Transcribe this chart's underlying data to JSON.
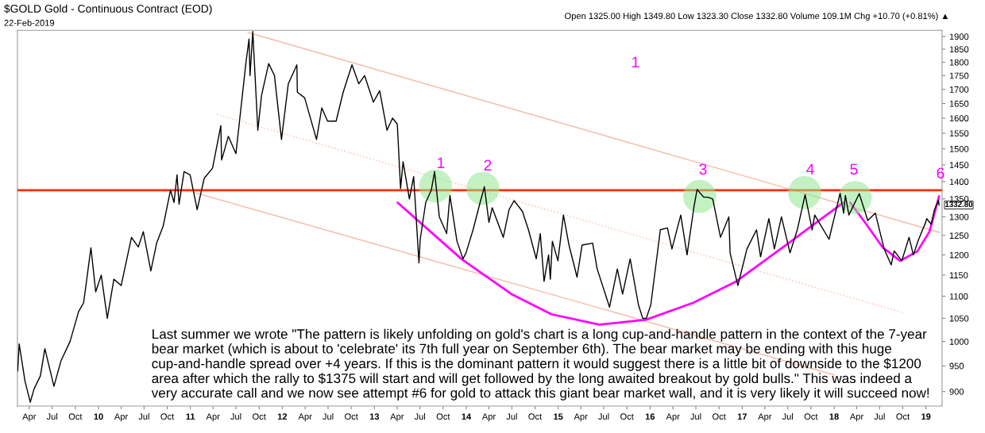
{
  "chart_data": {
    "type": "line",
    "title": "$GOLD Gold - Continuous Contract (EOD)",
    "subtitle": "22-Feb-2019",
    "log": "y",
    "xlim": [
      "2009-02-13",
      "2019-03-06"
    ],
    "ylim": [
      873,
      1925
    ],
    "yticks": [
      900,
      950,
      1000,
      1050,
      1100,
      1150,
      1200,
      1250,
      1300,
      1350,
      1400,
      1450,
      1500,
      1550,
      1600,
      1650,
      1700,
      1750,
      1800,
      1850,
      1900
    ],
    "xticks": [
      {
        "value": "2009-04-01",
        "label": "Apr"
      },
      {
        "value": "2009-07-01",
        "label": "Jul"
      },
      {
        "value": "2009-10-01",
        "label": "Oct"
      },
      {
        "value": "2010-01-01",
        "label": "10"
      },
      {
        "value": "2010-04-01",
        "label": "Apr"
      },
      {
        "value": "2010-07-01",
        "label": "Jul"
      },
      {
        "value": "2010-10-01",
        "label": "Oct"
      },
      {
        "value": "2011-01-01",
        "label": "11"
      },
      {
        "value": "2011-04-01",
        "label": "Apr"
      },
      {
        "value": "2011-07-01",
        "label": "Jul"
      },
      {
        "value": "2011-10-01",
        "label": "Oct"
      },
      {
        "value": "2012-01-01",
        "label": "12"
      },
      {
        "value": "2012-04-01",
        "label": "Apr"
      },
      {
        "value": "2012-07-01",
        "label": "Jul"
      },
      {
        "value": "2012-10-01",
        "label": "Oct"
      },
      {
        "value": "2013-01-01",
        "label": "13"
      },
      {
        "value": "2013-04-01",
        "label": "Apr"
      },
      {
        "value": "2013-07-01",
        "label": "Jul"
      },
      {
        "value": "2013-10-01",
        "label": "Oct"
      },
      {
        "value": "2014-01-01",
        "label": "14"
      },
      {
        "value": "2014-04-01",
        "label": "Apr"
      },
      {
        "value": "2014-07-01",
        "label": "Jul"
      },
      {
        "value": "2014-10-01",
        "label": "Oct"
      },
      {
        "value": "2015-01-01",
        "label": "15"
      },
      {
        "value": "2015-04-01",
        "label": "Apr"
      },
      {
        "value": "2015-07-01",
        "label": "Jul"
      },
      {
        "value": "2015-10-01",
        "label": "Oct"
      },
      {
        "value": "2016-01-01",
        "label": "16"
      },
      {
        "value": "2016-04-01",
        "label": "Apr"
      },
      {
        "value": "2016-07-01",
        "label": "Jul"
      },
      {
        "value": "2016-10-01",
        "label": "Oct"
      },
      {
        "value": "2017-01-01",
        "label": "17"
      },
      {
        "value": "2017-04-01",
        "label": "Apr"
      },
      {
        "value": "2017-07-01",
        "label": "Jul"
      },
      {
        "value": "2017-10-01",
        "label": "Oct"
      },
      {
        "value": "2018-01-01",
        "label": "18"
      },
      {
        "value": "2018-04-01",
        "label": "Apr"
      },
      {
        "value": "2018-07-01",
        "label": "Jul"
      },
      {
        "value": "2018-10-01",
        "label": "Oct"
      },
      {
        "value": "2019-01-01",
        "label": "19"
      }
    ],
    "ref_lines": [
      {
        "axis": "y",
        "value": 1375,
        "color": "#ff2a00"
      }
    ],
    "series": [
      {
        "color": "#000000",
        "x": [
          "2009-02-14",
          "2009-02-20",
          "2009-03-15",
          "2009-04-05",
          "2009-04-20",
          "2009-05-15",
          "2009-06-02",
          "2009-07-08",
          "2009-08-05",
          "2009-09-10",
          "2009-10-14",
          "2009-11-03",
          "2009-12-02",
          "2009-12-21",
          "2010-01-12",
          "2010-02-05",
          "2010-03-03",
          "2010-04-01",
          "2010-05-12",
          "2010-06-08",
          "2010-06-28",
          "2010-07-28",
          "2010-08-20",
          "2010-09-15",
          "2010-10-14",
          "2010-10-28",
          "2010-11-09",
          "2010-11-17",
          "2010-12-07",
          "2010-12-31",
          "2011-01-28",
          "2011-02-25",
          "2011-03-30",
          "2011-05-02",
          "2011-05-05",
          "2011-06-01",
          "2011-07-01",
          "2011-08-10",
          "2011-08-22",
          "2011-08-26",
          "2011-09-06",
          "2011-09-26",
          "2011-10-11",
          "2011-11-08",
          "2011-12-01",
          "2011-12-29",
          "2012-01-25",
          "2012-02-28",
          "2012-03-01",
          "2012-03-30",
          "2012-05-16",
          "2012-06-06",
          "2012-06-29",
          "2012-08-02",
          "2012-08-30",
          "2012-10-04",
          "2012-10-31",
          "2012-11-23",
          "2012-12-28",
          "2013-01-22",
          "2013-02-20",
          "2013-03-14",
          "2013-04-02",
          "2013-04-15",
          "2013-04-25",
          "2013-05-20",
          "2013-06-06",
          "2013-06-27",
          "2013-07-02",
          "2013-07-24",
          "2013-08-15",
          "2013-08-28",
          "2013-09-16",
          "2013-10-15",
          "2013-10-28",
          "2013-11-25",
          "2013-12-19",
          "2013-12-31",
          "2014-01-28",
          "2014-02-25",
          "2014-03-14",
          "2014-04-01",
          "2014-04-14",
          "2014-05-28",
          "2014-06-20",
          "2014-07-10",
          "2014-08-12",
          "2014-09-05",
          "2014-10-06",
          "2014-10-22",
          "2014-11-06",
          "2014-11-24",
          "2014-12-01",
          "2014-12-09",
          "2014-12-31",
          "2015-01-22",
          "2015-02-13",
          "2015-03-17",
          "2015-04-06",
          "2015-05-18",
          "2015-06-05",
          "2015-07-24",
          "2015-08-24",
          "2015-09-14",
          "2015-10-14",
          "2015-11-16",
          "2015-12-03",
          "2015-12-17",
          "2016-01-04",
          "2016-02-11",
          "2016-03-10",
          "2016-03-28",
          "2016-05-02",
          "2016-05-27",
          "2016-06-24",
          "2016-07-06",
          "2016-08-01",
          "2016-08-17",
          "2016-09-06",
          "2016-10-07",
          "2016-11-09",
          "2016-11-14",
          "2016-12-15",
          "2017-01-20",
          "2017-02-27",
          "2017-03-15",
          "2017-04-17",
          "2017-05-09",
          "2017-06-06",
          "2017-07-10",
          "2017-08-08",
          "2017-09-08",
          "2017-10-06",
          "2017-10-16",
          "2017-12-12",
          "2018-01-25",
          "2018-02-08",
          "2018-02-15",
          "2018-03-01",
          "2018-04-11",
          "2018-05-15",
          "2018-06-14",
          "2018-07-19",
          "2018-08-16",
          "2018-08-28",
          "2018-09-27",
          "2018-10-26",
          "2018-11-12",
          "2018-12-03",
          "2018-12-31",
          "2019-01-04",
          "2019-01-22",
          "2019-02-04",
          "2019-02-20",
          "2019-02-22"
        ],
        "values": [
          940,
          995,
          920,
          880,
          905,
          930,
          985,
          910,
          960,
          1000,
          1065,
          1085,
          1218,
          1110,
          1150,
          1050,
          1140,
          1125,
          1245,
          1220,
          1260,
          1160,
          1230,
          1275,
          1375,
          1340,
          1420,
          1335,
          1430,
          1420,
          1320,
          1410,
          1440,
          1575,
          1465,
          1540,
          1485,
          1800,
          1890,
          1750,
          1920,
          1560,
          1680,
          1795,
          1750,
          1530,
          1720,
          1790,
          1690,
          1670,
          1530,
          1635,
          1590,
          1590,
          1690,
          1790,
          1720,
          1750,
          1655,
          1695,
          1560,
          1600,
          1580,
          1380,
          1460,
          1350,
          1415,
          1180,
          1240,
          1340,
          1375,
          1430,
          1300,
          1255,
          1360,
          1235,
          1190,
          1205,
          1265,
          1340,
          1385,
          1285,
          1325,
          1245,
          1320,
          1345,
          1315,
          1265,
          1190,
          1255,
          1135,
          1200,
          1140,
          1235,
          1185,
          1305,
          1225,
          1145,
          1225,
          1230,
          1165,
          1075,
          1165,
          1105,
          1190,
          1080,
          1050,
          1050,
          1080,
          1265,
          1270,
          1215,
          1305,
          1200,
          1330,
          1377,
          1355,
          1355,
          1350,
          1245,
          1300,
          1205,
          1125,
          1215,
          1265,
          1195,
          1295,
          1215,
          1300,
          1205,
          1265,
          1362,
          1265,
          1305,
          1240,
          1366,
          1310,
          1360,
          1305,
          1365,
          1290,
          1310,
          1215,
          1175,
          1210,
          1185,
          1245,
          1200,
          1240,
          1285,
          1295,
          1280,
          1320,
          1346,
          1332.8
        ],
        "value_labels": [
          null,
          null,
          null,
          null,
          null,
          null,
          null,
          null,
          null,
          null,
          null,
          null,
          null,
          null,
          null,
          null,
          null,
          null,
          null,
          null,
          null,
          null,
          null,
          null,
          null,
          null,
          null,
          null,
          null,
          null,
          null,
          null,
          null,
          null,
          null,
          null,
          null,
          null,
          null,
          null,
          null,
          null,
          null,
          null,
          null,
          null,
          null,
          null,
          null,
          null,
          null,
          null,
          null,
          null,
          null,
          null,
          null,
          null,
          null,
          null,
          null,
          null,
          null,
          null,
          null,
          null,
          null,
          null,
          null,
          null,
          null,
          null,
          null,
          null,
          null,
          null,
          null,
          null,
          null,
          null,
          null,
          null,
          null,
          null,
          null,
          null,
          null,
          null,
          null,
          null,
          null,
          null,
          null,
          null,
          null,
          null,
          null,
          null,
          null,
          null,
          null,
          null,
          null,
          null,
          null,
          null,
          null,
          null,
          null,
          null,
          null,
          null,
          null,
          null,
          null,
          null,
          null,
          null,
          null,
          null,
          null,
          null,
          null,
          null,
          null,
          null,
          null,
          null,
          null,
          null,
          null,
          null,
          null,
          null,
          null,
          null,
          null,
          null,
          null,
          null,
          null,
          null,
          null,
          null,
          null,
          null,
          null,
          null,
          null,
          null,
          null,
          null,
          null,
          null,
          "1332.80"
        ]
      },
      {
        "type": "line",
        "color": "#f7b9a6",
        "x": [
          "2011-08-18",
          "2019-02-24"
        ],
        "values": [
          1916,
          1258
        ]
      },
      {
        "type": "line",
        "color": "#f7b9a6",
        "line_style": "dotted",
        "x": [
          "2011-04-16",
          "2018-10-05"
        ],
        "values": [
          1613,
          1062
        ]
      },
      {
        "type": "line",
        "color": "#f7b9a6",
        "x": [
          "2011-01-18",
          "2018-01-01"
        ],
        "values": [
          1368,
          932
        ]
      },
      {
        "type": "line",
        "color": "#ff00ff",
        "x": [
          "2013-04-04",
          "2013-12-14",
          "2014-07-02",
          "2014-12-05",
          "2015-06-13",
          "2015-12-16",
          "2016-06-21",
          "2016-12-09",
          "2017-07-02",
          "2018-02-06"
        ],
        "values": [
          1339,
          1189,
          1104,
          1059,
          1036,
          1047,
          1085,
          1135,
          1229,
          1339
        ]
      },
      {
        "type": "line",
        "color": "#ff00ff",
        "x": [
          "2018-03-07",
          "2018-05-08",
          "2018-07-13",
          "2018-09-20",
          "2018-11-28",
          "2019-01-15",
          "2019-02-22"
        ],
        "values": [
          1339,
          1281,
          1219,
          1185,
          1209,
          1260,
          1357
        ]
      },
      {
        "type": "scatter",
        "color": "#90e890",
        "marker": "circle",
        "x": [
          "2013-09-01",
          "2014-03-08",
          "2016-07-16",
          "2017-09-06",
          "2018-03-26"
        ],
        "values": [
          1387,
          1380,
          1357,
          1368,
          1354
        ]
      }
    ],
    "annotations": [
      "Open 1325.00 High 1349.80 Low 1323.30 Close 1332.80 Volume 109.1M Chg +10.70 (+0.81%) ▲",
      "Last summer we wrote \"The pattern is likely unfolding on gold's chart is a long cup-and-handle pattern in the context of the 7-year\nbear market (which is about to 'celebrate' its 7th full year on September 6th). The bear market may be ending with this huge\ncup-and-handle spread over +4 years. If this is the dominant pattern it would suggest there is a little bit of downside to the $1200\narea after which the rally to $1375 will start and will get followed by the long awaited breakout by gold bulls.\" This was indeed a\nvery accurate call and we now see attempt #6 for gold to attack this giant bear market wall, and it is very likely it will succeed now!",
      "1",
      "2",
      "3",
      "4",
      "5",
      "6",
      "1"
    ]
  }
}
